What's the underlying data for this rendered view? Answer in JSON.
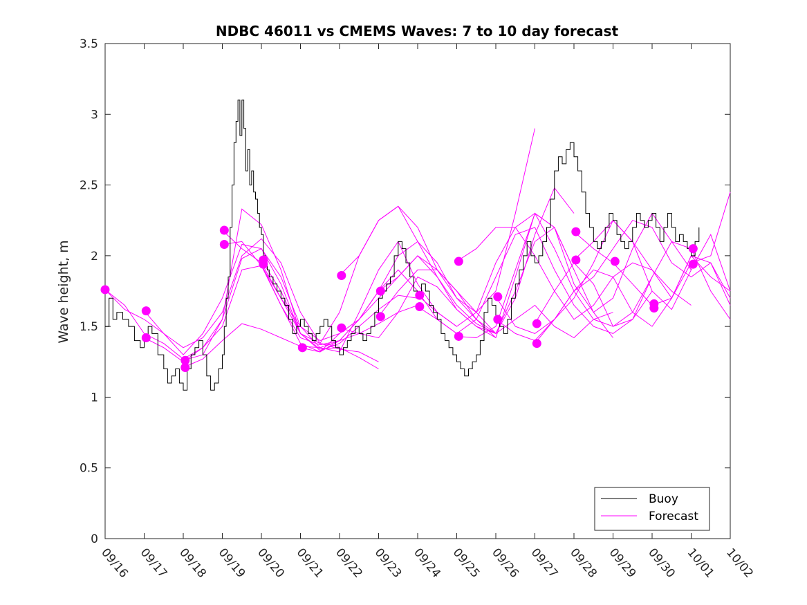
{
  "chart_data": {
    "type": "line",
    "title": "NDBC 46011 vs CMEMS Waves: 7 to 10 day forecast",
    "xlabel": "",
    "ylabel": "Wave height, m",
    "ylim": [
      0,
      3.5
    ],
    "yticks": [
      0,
      0.5,
      1,
      1.5,
      2,
      2.5,
      3,
      3.5
    ],
    "ytick_labels": [
      "0",
      "0.5",
      "1",
      "1.5",
      "2",
      "2.5",
      "3",
      "3.5"
    ],
    "xlim": [
      0,
      16
    ],
    "xtick_labels": [
      "09/16",
      "09/17",
      "09/18",
      "09/19",
      "09/20",
      "09/21",
      "09/22",
      "09/23",
      "09/24",
      "09/25",
      "09/26",
      "09/27",
      "09/28",
      "09/29",
      "09/30",
      "10/01",
      "10/02"
    ],
    "x_units": "days since 09/16",
    "legend": {
      "placement": "bottom-right",
      "entries": [
        {
          "name": "Buoy",
          "color": "#000000"
        },
        {
          "name": "Forecast",
          "color": "#ff00ff"
        }
      ]
    },
    "series": [
      {
        "name": "Buoy",
        "color": "#000000",
        "x": [
          0,
          0.1,
          0.2,
          0.3,
          0.45,
          0.6,
          0.75,
          0.9,
          1.0,
          1.1,
          1.2,
          1.35,
          1.5,
          1.6,
          1.7,
          1.8,
          1.9,
          2.0,
          2.1,
          2.2,
          2.3,
          2.4,
          2.5,
          2.6,
          2.7,
          2.8,
          2.9,
          3.0,
          3.05,
          3.1,
          3.15,
          3.2,
          3.25,
          3.3,
          3.35,
          3.4,
          3.45,
          3.5,
          3.55,
          3.6,
          3.65,
          3.7,
          3.75,
          3.8,
          3.85,
          3.9,
          3.95,
          4.0,
          4.05,
          4.1,
          4.15,
          4.2,
          4.3,
          4.4,
          4.5,
          4.6,
          4.7,
          4.8,
          4.9,
          5.0,
          5.1,
          5.2,
          5.3,
          5.4,
          5.5,
          5.6,
          5.7,
          5.8,
          5.9,
          6.0,
          6.1,
          6.2,
          6.3,
          6.4,
          6.5,
          6.6,
          6.7,
          6.8,
          6.9,
          7.0,
          7.1,
          7.2,
          7.3,
          7.4,
          7.5,
          7.6,
          7.7,
          7.8,
          7.9,
          8.0,
          8.1,
          8.2,
          8.3,
          8.4,
          8.5,
          8.6,
          8.7,
          8.8,
          8.9,
          9.0,
          9.1,
          9.2,
          9.3,
          9.4,
          9.5,
          9.6,
          9.7,
          9.8,
          9.9,
          10.0,
          10.1,
          10.2,
          10.3,
          10.4,
          10.5,
          10.6,
          10.7,
          10.8,
          10.9,
          11.0,
          11.1,
          11.2,
          11.3,
          11.4,
          11.5,
          11.6,
          11.7,
          11.8,
          11.9,
          12.0,
          12.1,
          12.2,
          12.3,
          12.4,
          12.5,
          12.6,
          12.7,
          12.8,
          12.9,
          13.0,
          13.1,
          13.2,
          13.3,
          13.4,
          13.5,
          13.6,
          13.7,
          13.8,
          13.9,
          14.0,
          14.1,
          14.2,
          14.3,
          14.4,
          14.5,
          14.6,
          14.7,
          14.8,
          14.9,
          15.0,
          15.1,
          15.2
        ],
        "values": [
          1.5,
          1.7,
          1.55,
          1.6,
          1.55,
          1.5,
          1.4,
          1.35,
          1.4,
          1.5,
          1.45,
          1.3,
          1.2,
          1.1,
          1.15,
          1.2,
          1.1,
          1.05,
          1.2,
          1.3,
          1.35,
          1.4,
          1.3,
          1.15,
          1.05,
          1.1,
          1.2,
          1.3,
          1.5,
          1.7,
          1.85,
          2.2,
          2.5,
          2.8,
          2.95,
          3.1,
          2.85,
          3.1,
          2.9,
          2.6,
          2.75,
          2.5,
          2.6,
          2.45,
          2.4,
          2.3,
          2.2,
          2.15,
          2.0,
          1.95,
          1.9,
          1.85,
          1.8,
          1.75,
          1.7,
          1.65,
          1.55,
          1.45,
          1.5,
          1.55,
          1.5,
          1.45,
          1.4,
          1.45,
          1.5,
          1.55,
          1.5,
          1.4,
          1.35,
          1.3,
          1.35,
          1.4,
          1.45,
          1.5,
          1.45,
          1.4,
          1.45,
          1.5,
          1.6,
          1.7,
          1.75,
          1.8,
          1.85,
          2.0,
          2.1,
          2.05,
          1.95,
          1.85,
          1.75,
          1.7,
          1.8,
          1.75,
          1.65,
          1.6,
          1.55,
          1.45,
          1.4,
          1.35,
          1.3,
          1.25,
          1.2,
          1.15,
          1.2,
          1.25,
          1.3,
          1.4,
          1.6,
          1.7,
          1.65,
          1.55,
          1.5,
          1.45,
          1.55,
          1.7,
          1.8,
          1.9,
          2.0,
          2.1,
          2.0,
          1.95,
          2.0,
          2.1,
          2.2,
          2.4,
          2.6,
          2.7,
          2.65,
          2.75,
          2.8,
          2.7,
          2.6,
          2.45,
          2.3,
          2.2,
          2.1,
          2.05,
          2.1,
          2.2,
          2.3,
          2.25,
          2.15,
          2.1,
          2.05,
          2.1,
          2.2,
          2.3,
          2.25,
          2.2,
          2.25,
          2.3,
          2.2,
          2.1,
          2.2,
          2.3,
          2.2,
          2.1,
          2.15,
          2.1,
          2.05,
          2.0,
          2.1,
          2.2
        ]
      }
    ],
    "forecast_series": [
      {
        "name": "Forecast",
        "x": [
          0.0,
          0.5,
          1.0,
          1.5,
          2.0,
          2.5,
          3.0,
          3.5,
          4.0,
          4.5,
          5.0,
          5.5,
          6.0
        ],
        "values": [
          1.76,
          1.62,
          1.55,
          1.45,
          1.3,
          1.45,
          1.7,
          2.08,
          2.05,
          1.85,
          1.5,
          1.4,
          1.45
        ]
      },
      {
        "name": "Forecast",
        "x": [
          0.0,
          0.5,
          1.0,
          1.5,
          2.0,
          2.5,
          3.0,
          3.5,
          4.0,
          4.5,
          5.0,
          5.5,
          6.0
        ],
        "values": [
          1.76,
          1.65,
          1.45,
          1.38,
          1.27,
          1.35,
          1.5,
          1.9,
          1.93,
          1.7,
          1.45,
          1.38,
          1.36
        ]
      },
      {
        "name": "Forecast",
        "x": [
          1.0,
          1.5,
          2.0,
          2.5,
          3.0,
          3.5,
          4.0,
          4.5,
          5.0,
          5.5,
          6.0,
          6.5,
          7.0
        ],
        "values": [
          1.61,
          1.45,
          1.35,
          1.42,
          1.6,
          2.0,
          2.12,
          1.95,
          1.6,
          1.38,
          1.34,
          1.32,
          1.25
        ]
      },
      {
        "name": "Forecast",
        "x": [
          1.0,
          1.5,
          2.0,
          2.5,
          3.0,
          3.5,
          4.0,
          4.5,
          5.0,
          5.5,
          6.0,
          6.5,
          7.0
        ],
        "values": [
          1.42,
          1.35,
          1.25,
          1.35,
          1.55,
          1.98,
          2.05,
          1.8,
          1.45,
          1.34,
          1.35,
          1.28,
          1.2
        ]
      },
      {
        "name": "Forecast",
        "x": [
          2.0,
          2.5,
          3.0,
          3.5,
          4.0,
          4.5,
          5.0,
          5.5,
          6.0,
          6.5,
          7.0,
          7.5,
          8.0
        ],
        "values": [
          1.26,
          1.3,
          1.55,
          2.33,
          2.22,
          1.9,
          1.45,
          1.33,
          1.38,
          1.5,
          1.62,
          1.72,
          1.7
        ]
      },
      {
        "name": "Forecast",
        "x": [
          2.0,
          2.5,
          3.0,
          3.5,
          4.0,
          4.5,
          5.0,
          5.5,
          6.0,
          6.5,
          7.0,
          7.5,
          8.0
        ],
        "values": [
          1.21,
          1.27,
          1.4,
          1.52,
          1.48,
          1.42,
          1.36,
          1.35,
          1.4,
          1.45,
          1.52,
          1.6,
          1.65
        ]
      },
      {
        "name": "Forecast",
        "x": [
          3.0,
          3.5,
          4.0,
          4.5,
          5.0,
          5.5,
          6.0,
          6.5,
          7.0,
          7.5,
          8.0,
          8.5,
          9.0
        ],
        "values": [
          2.18,
          2.05,
          1.95,
          1.7,
          1.5,
          1.35,
          1.32,
          1.6,
          1.9,
          2.1,
          1.8,
          1.6,
          1.5
        ]
      },
      {
        "name": "Forecast",
        "x": [
          3.0,
          3.5,
          4.0,
          4.5,
          5.0,
          5.5,
          6.0,
          6.5,
          7.0,
          7.5,
          8.0,
          8.5,
          9.0
        ],
        "values": [
          2.08,
          2.1,
          1.93,
          1.65,
          1.42,
          1.37,
          1.4,
          1.55,
          1.75,
          1.9,
          1.75,
          1.55,
          1.45
        ]
      },
      {
        "name": "Forecast",
        "x": [
          4.0,
          4.5,
          5.0,
          5.5,
          6.0,
          6.5,
          7.0,
          7.5,
          8.0,
          8.5,
          9.0,
          9.5,
          10.0
        ],
        "values": [
          1.97,
          1.75,
          1.45,
          1.38,
          1.6,
          2.0,
          2.25,
          2.35,
          2.1,
          1.85,
          1.62,
          1.5,
          1.45
        ]
      },
      {
        "name": "Forecast",
        "x": [
          4.0,
          4.5,
          5.0,
          5.5,
          6.0,
          6.5,
          7.0,
          7.5,
          8.0,
          8.5,
          9.0,
          9.5,
          10.0
        ],
        "values": [
          1.94,
          1.65,
          1.38,
          1.32,
          1.45,
          1.55,
          1.7,
          1.85,
          2.0,
          1.9,
          1.7,
          1.55,
          1.42
        ]
      },
      {
        "name": "Forecast",
        "x": [
          5.0,
          5.5,
          6.0,
          6.5,
          7.0,
          7.5,
          8.0,
          8.5,
          9.0,
          9.5,
          10.0,
          10.5,
          11.0
        ],
        "values": [
          1.35,
          1.32,
          1.4,
          1.55,
          1.75,
          2.0,
          2.1,
          1.95,
          1.7,
          1.6,
          1.75,
          2.3,
          2.9
        ]
      },
      {
        "name": "Forecast",
        "x": [
          6.0,
          6.5,
          7.0,
          7.5,
          8.0,
          8.5,
          9.0,
          9.5,
          10.0,
          10.5,
          11.0,
          11.5,
          12.0
        ],
        "values": [
          1.86,
          2.0,
          2.25,
          2.35,
          2.2,
          1.9,
          1.75,
          1.55,
          1.45,
          1.7,
          2.15,
          2.48,
          2.3
        ]
      },
      {
        "name": "Forecast",
        "x": [
          6.0,
          6.5,
          7.0,
          7.5,
          8.0,
          8.5,
          9.0,
          9.5,
          10.0,
          10.5,
          11.0,
          11.5,
          12.0
        ],
        "values": [
          1.49,
          1.45,
          1.42,
          1.6,
          1.85,
          1.78,
          1.62,
          1.5,
          1.42,
          1.85,
          2.3,
          2.2,
          1.9
        ]
      },
      {
        "name": "Forecast",
        "x": [
          7.0,
          7.5,
          8.0,
          8.5,
          9.0,
          9.5,
          10.0,
          10.5,
          11.0,
          11.5,
          12.0,
          12.5,
          13.0
        ],
        "values": [
          1.75,
          1.85,
          2.0,
          1.85,
          1.65,
          1.52,
          1.45,
          1.55,
          1.65,
          1.5,
          1.42,
          1.55,
          1.6
        ]
      },
      {
        "name": "Forecast",
        "x": [
          7.0,
          7.5,
          8.0,
          8.5,
          9.0,
          9.5,
          10.0,
          10.5,
          11.0,
          11.5,
          12.0,
          12.5,
          13.0
        ],
        "values": [
          1.57,
          1.75,
          1.9,
          1.9,
          1.75,
          1.6,
          1.45,
          1.75,
          2.1,
          2.2,
          1.9,
          1.6,
          1.42
        ]
      },
      {
        "name": "Forecast",
        "x": [
          8.0,
          8.5,
          9.0,
          9.5,
          10.0,
          10.5,
          11.0,
          11.5,
          12.0,
          12.5,
          13.0,
          13.5,
          14.0
        ],
        "values": [
          1.72,
          1.6,
          1.5,
          1.6,
          1.95,
          2.2,
          2.3,
          2.05,
          1.75,
          1.55,
          1.5,
          1.6,
          1.85
        ]
      },
      {
        "name": "Forecast",
        "x": [
          8.0,
          8.5,
          9.0,
          9.5,
          10.0,
          10.5,
          11.0,
          11.5,
          12.0,
          12.5,
          13.0,
          13.5,
          14.0
        ],
        "values": [
          1.64,
          1.55,
          1.45,
          1.55,
          1.85,
          2.15,
          2.2,
          1.9,
          1.65,
          1.5,
          1.45,
          1.55,
          1.75
        ]
      },
      {
        "name": "Forecast",
        "x": [
          9.0,
          9.5,
          10.0,
          10.5,
          11.0,
          11.5,
          12.0,
          12.5,
          13.0,
          13.5,
          14.0,
          14.5,
          15.0
        ],
        "values": [
          1.96,
          2.05,
          2.2,
          2.2,
          2.0,
          1.75,
          1.55,
          1.65,
          1.85,
          1.95,
          1.9,
          1.75,
          1.65
        ]
      },
      {
        "name": "Forecast",
        "x": [
          9.0,
          9.5,
          10.0,
          10.5,
          11.0,
          11.5,
          12.0,
          12.5,
          13.0,
          13.5,
          14.0,
          14.5,
          15.0
        ],
        "values": [
          1.43,
          1.42,
          1.5,
          1.9,
          2.3,
          2.2,
          1.8,
          1.6,
          1.7,
          2.05,
          2.3,
          2.1,
          1.9
        ]
      },
      {
        "name": "Forecast",
        "x": [
          10.0,
          10.5,
          11.0,
          11.5,
          12.0,
          12.5,
          13.0,
          13.5,
          14.0,
          14.5,
          15.0,
          15.5,
          16.0
        ],
        "values": [
          1.71,
          1.5,
          1.45,
          1.55,
          1.7,
          1.95,
          2.25,
          2.1,
          1.75,
          1.62,
          1.9,
          2.15,
          1.75
        ]
      },
      {
        "name": "Forecast",
        "x": [
          10.0,
          10.5,
          11.0,
          11.5,
          12.0,
          12.5,
          13.0,
          13.5,
          14.0,
          14.5,
          15.0,
          15.5,
          16.0
        ],
        "values": [
          1.55,
          1.45,
          1.4,
          1.55,
          1.75,
          1.85,
          2.05,
          2.25,
          2.2,
          1.95,
          1.85,
          1.95,
          1.7
        ]
      },
      {
        "name": "Forecast",
        "x": [
          11.0,
          11.5,
          12.0,
          12.5,
          13.0,
          13.5,
          14.0,
          14.5,
          15.0,
          15.5,
          16.0
        ],
        "values": [
          1.52,
          1.75,
          1.95,
          1.8,
          1.5,
          1.55,
          1.85,
          2.1,
          2.05,
          1.75,
          1.55
        ]
      },
      {
        "name": "Forecast",
        "x": [
          11.0,
          11.5,
          12.0,
          12.5,
          13.0,
          13.5,
          14.0,
          14.5,
          15.0,
          15.5,
          16.0
        ],
        "values": [
          1.38,
          1.55,
          1.75,
          1.9,
          1.85,
          1.6,
          1.5,
          1.7,
          2.0,
          1.95,
          1.65
        ]
      },
      {
        "name": "Forecast",
        "x": [
          12.0,
          12.5,
          13.0,
          13.5,
          14.0,
          14.5,
          15.0,
          15.5,
          16.0
        ],
        "values": [
          2.17,
          2.05,
          1.95,
          1.8,
          1.65,
          1.7,
          2.0,
          1.85,
          1.75
        ]
      },
      {
        "name": "Forecast",
        "x": [
          12.0,
          12.5,
          13.0,
          13.5,
          14.0,
          14.5,
          15.0,
          15.5,
          16.0
        ],
        "values": [
          1.97,
          2.1,
          2.25,
          2.1,
          1.9,
          1.7,
          1.95,
          2.0,
          2.45
        ]
      }
    ],
    "forecast_markers": {
      "name": "Forecast start points",
      "color": "#ff00ff",
      "x": [
        0.0,
        1.05,
        1.05,
        2.05,
        2.05,
        3.05,
        3.05,
        4.05,
        4.05,
        5.05,
        6.05,
        6.05,
        7.05,
        7.05,
        8.05,
        8.05,
        9.05,
        9.05,
        10.05,
        10.05,
        11.05,
        11.05,
        12.05,
        12.05,
        13.05,
        14.05,
        14.05,
        15.05,
        15.05
      ],
      "values": [
        1.76,
        1.61,
        1.42,
        1.26,
        1.21,
        2.18,
        2.08,
        1.97,
        1.94,
        1.35,
        1.86,
        1.49,
        1.75,
        1.57,
        1.72,
        1.64,
        1.96,
        1.43,
        1.71,
        1.55,
        1.52,
        1.38,
        2.17,
        1.97,
        1.96,
        1.66,
        1.63,
        2.05,
        1.94
      ]
    }
  }
}
